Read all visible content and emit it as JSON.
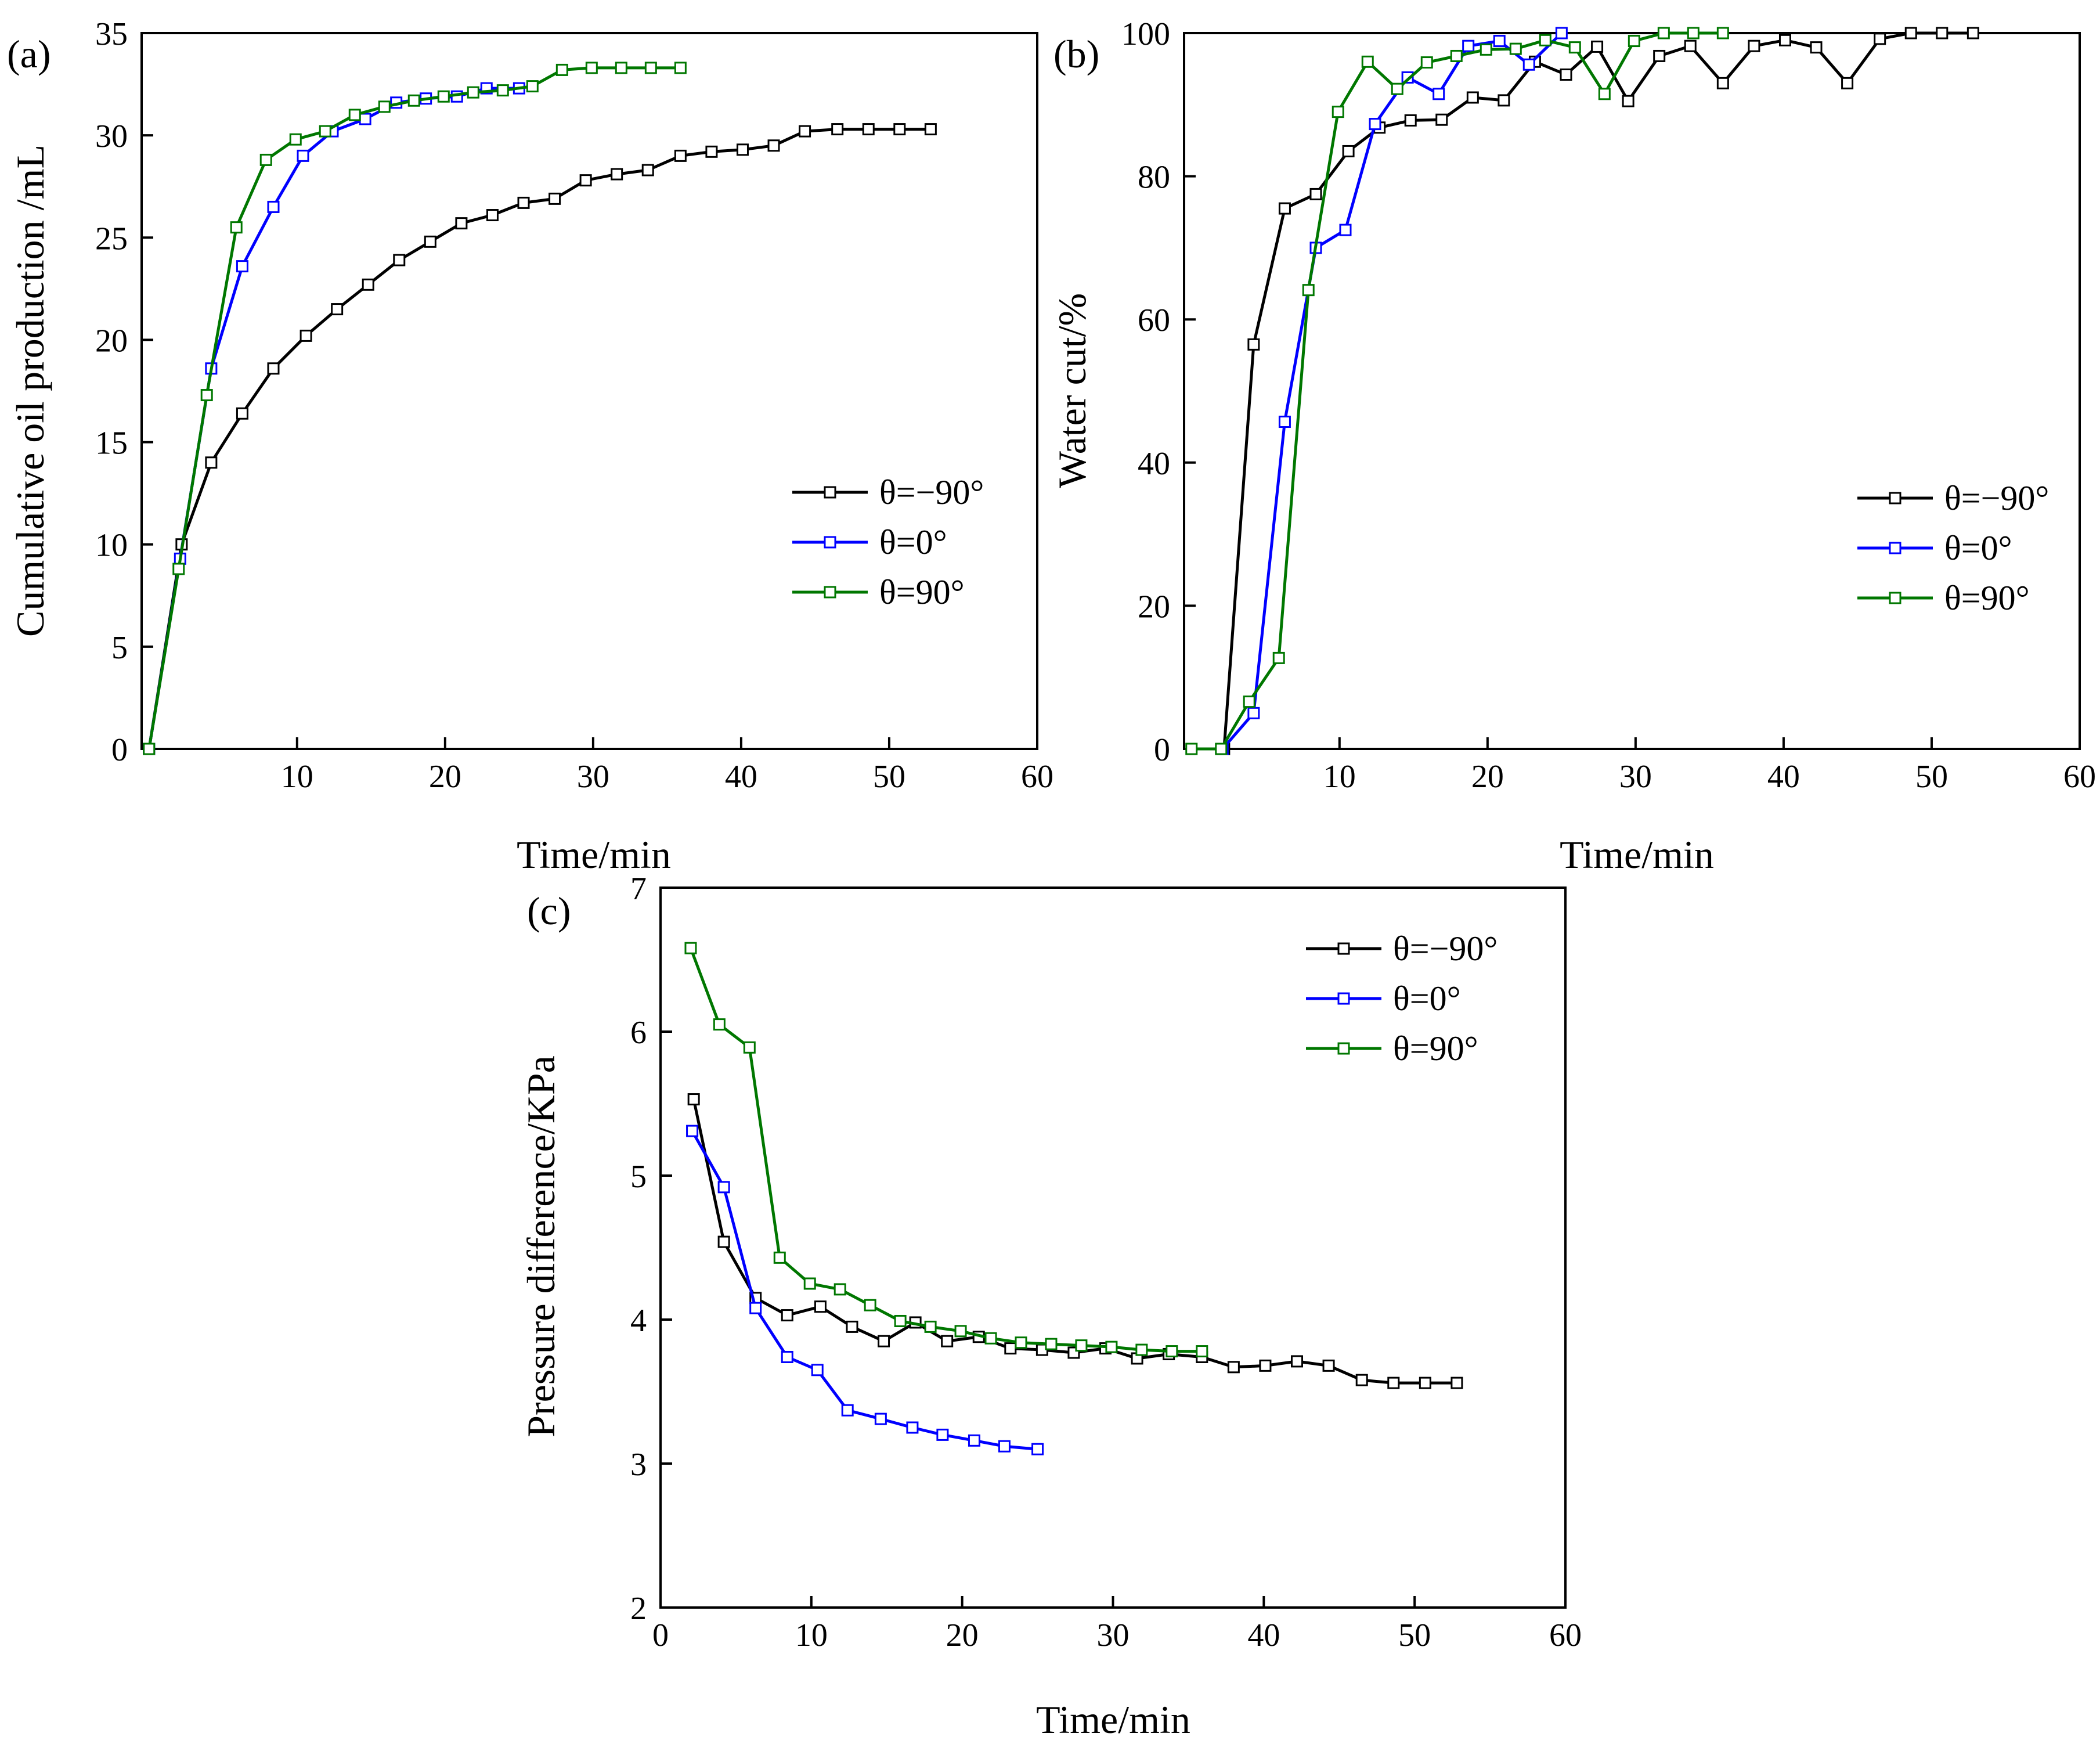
{
  "chart_data": [
    {
      "panel": "(a)",
      "type": "line",
      "xlabel": "Time/min",
      "ylabel": "Cumulative oil production /mL",
      "xlim": [
        -0.5,
        60
      ],
      "ylim": [
        0,
        35
      ],
      "xticks": [
        10,
        20,
        30,
        40,
        50,
        60
      ],
      "yticks": [
        0,
        5,
        10,
        15,
        20,
        25,
        30,
        35
      ],
      "legend_position": "center-right",
      "series": [
        {
          "name": "θ=−90°",
          "color": "#000000",
          "x": [
            0,
            2.2,
            4.2,
            6.3,
            8.4,
            10.6,
            12.7,
            14.8,
            16.9,
            19.0,
            21.1,
            23.2,
            25.3,
            27.4,
            29.5,
            31.6,
            33.7,
            35.9,
            38.0,
            40.1,
            42.2,
            44.3,
            46.5,
            48.6,
            50.7,
            52.8
          ],
          "y": [
            0,
            10.0,
            14.0,
            16.4,
            18.6,
            20.2,
            21.5,
            22.7,
            23.9,
            24.8,
            25.7,
            26.1,
            26.7,
            26.9,
            27.8,
            28.1,
            28.3,
            29.0,
            29.2,
            29.3,
            29.5,
            30.2,
            30.3,
            30.3,
            30.3,
            30.3
          ]
        },
        {
          "name": "θ=0°",
          "color": "#0000ff",
          "x": [
            0,
            2.1,
            4.2,
            6.3,
            8.4,
            10.4,
            12.4,
            14.6,
            16.7,
            18.7,
            20.8,
            22.8,
            25.0
          ],
          "y": [
            0,
            9.3,
            18.6,
            23.6,
            26.5,
            29.0,
            30.2,
            30.8,
            31.6,
            31.8,
            31.9,
            32.3,
            32.3
          ]
        },
        {
          "name": "θ=90°",
          "color": "#007700",
          "x": [
            0,
            2.0,
            3.9,
            5.9,
            7.9,
            9.9,
            11.9,
            13.9,
            15.9,
            17.9,
            19.9,
            21.9,
            23.9,
            25.9,
            27.9,
            29.9,
            31.9,
            33.9,
            35.9
          ],
          "y": [
            0,
            8.8,
            17.3,
            25.5,
            28.8,
            29.8,
            30.2,
            31.0,
            31.4,
            31.7,
            31.9,
            32.1,
            32.2,
            32.4,
            33.2,
            33.3,
            33.3,
            33.3,
            33.3
          ]
        }
      ]
    },
    {
      "panel": "(b)",
      "type": "line",
      "xlabel": "Time/min",
      "ylabel": "Water cut/%",
      "xlim": [
        -0.5,
        60
      ],
      "ylim": [
        0,
        100
      ],
      "xticks": [
        10,
        20,
        30,
        40,
        50,
        60
      ],
      "yticks": [
        0,
        20,
        40,
        60,
        80,
        100
      ],
      "legend_position": "center-right",
      "series": [
        {
          "name": "θ=−90°",
          "color": "#000000",
          "x": [
            2.2,
            4.2,
            6.3,
            8.4,
            10.6,
            12.7,
            14.8,
            16.9,
            19.0,
            21.1,
            23.2,
            25.3,
            27.4,
            29.5,
            31.6,
            33.7,
            35.9,
            38.0,
            40.1,
            42.2,
            44.3,
            46.5,
            48.6,
            50.7,
            52.8
          ],
          "y": [
            0,
            56.5,
            75.5,
            77.5,
            83.5,
            86.8,
            87.8,
            87.9,
            91.0,
            90.6,
            96.0,
            94.2,
            98.1,
            90.5,
            96.8,
            98.2,
            93.0,
            98.2,
            99.0,
            98.0,
            93.0,
            99.2,
            100,
            100,
            100
          ]
        },
        {
          "name": "θ=0°",
          "color": "#0000ff",
          "x": [
            2.1,
            4.2,
            6.3,
            8.4,
            10.4,
            12.4,
            14.6,
            16.7,
            18.7,
            20.8,
            22.8,
            25.0
          ],
          "y": [
            0,
            5.0,
            45.7,
            70.0,
            72.5,
            87.3,
            93.8,
            91.5,
            98.2,
            98.9,
            95.6,
            100
          ]
        },
        {
          "name": "θ=90°",
          "color": "#007700",
          "x": [
            0,
            2.0,
            3.9,
            5.9,
            7.9,
            9.9,
            11.9,
            13.9,
            15.9,
            17.9,
            19.9,
            21.9,
            23.9,
            25.9,
            27.9,
            29.9,
            31.9,
            33.9,
            35.9
          ],
          "y": [
            0,
            0,
            6.6,
            12.7,
            64.1,
            89.0,
            96.0,
            92.2,
            95.9,
            96.8,
            97.7,
            97.8,
            99.0,
            98.0,
            91.5,
            98.9,
            100,
            100,
            100
          ]
        }
      ]
    },
    {
      "panel": "(c)",
      "type": "line",
      "xlabel": "Time/min",
      "ylabel": "Pressure difference/KPa",
      "xlim": [
        0,
        60
      ],
      "ylim": [
        2,
        7
      ],
      "xticks": [
        0,
        10,
        20,
        30,
        40,
        50,
        60
      ],
      "yticks": [
        2,
        3,
        4,
        5,
        6,
        7
      ],
      "legend_position": "top-right",
      "series": [
        {
          "name": "θ=−90°",
          "color": "#000000",
          "x": [
            2.2,
            4.2,
            6.3,
            8.4,
            10.6,
            12.7,
            14.8,
            16.9,
            19.0,
            21.1,
            23.2,
            25.3,
            27.4,
            29.5,
            31.6,
            33.7,
            35.9,
            38.0,
            40.1,
            42.2,
            44.3,
            46.5,
            48.6,
            50.7,
            52.8
          ],
          "y": [
            5.53,
            4.54,
            4.15,
            4.03,
            4.09,
            3.95,
            3.85,
            3.98,
            3.85,
            3.88,
            3.8,
            3.79,
            3.77,
            3.8,
            3.73,
            3.76,
            3.74,
            3.67,
            3.68,
            3.71,
            3.68,
            3.58,
            3.56,
            3.56,
            3.56
          ]
        },
        {
          "name": "θ=0°",
          "color": "#0000ff",
          "x": [
            2.1,
            4.2,
            6.3,
            8.4,
            10.4,
            12.4,
            14.6,
            16.7,
            18.7,
            20.8,
            22.8,
            25.0
          ],
          "y": [
            5.31,
            4.92,
            4.08,
            3.74,
            3.65,
            3.37,
            3.31,
            3.25,
            3.2,
            3.16,
            3.12,
            3.1
          ]
        },
        {
          "name": "θ=90°",
          "color": "#007700",
          "x": [
            2.0,
            3.9,
            5.9,
            7.9,
            9.9,
            11.9,
            13.9,
            15.9,
            17.9,
            19.9,
            21.9,
            23.9,
            25.9,
            27.9,
            29.9,
            31.9,
            33.9,
            35.9
          ],
          "y": [
            6.58,
            6.05,
            5.89,
            4.43,
            4.25,
            4.21,
            4.1,
            3.99,
            3.95,
            3.92,
            3.87,
            3.84,
            3.83,
            3.82,
            3.81,
            3.79,
            3.78,
            3.78
          ]
        }
      ]
    }
  ]
}
